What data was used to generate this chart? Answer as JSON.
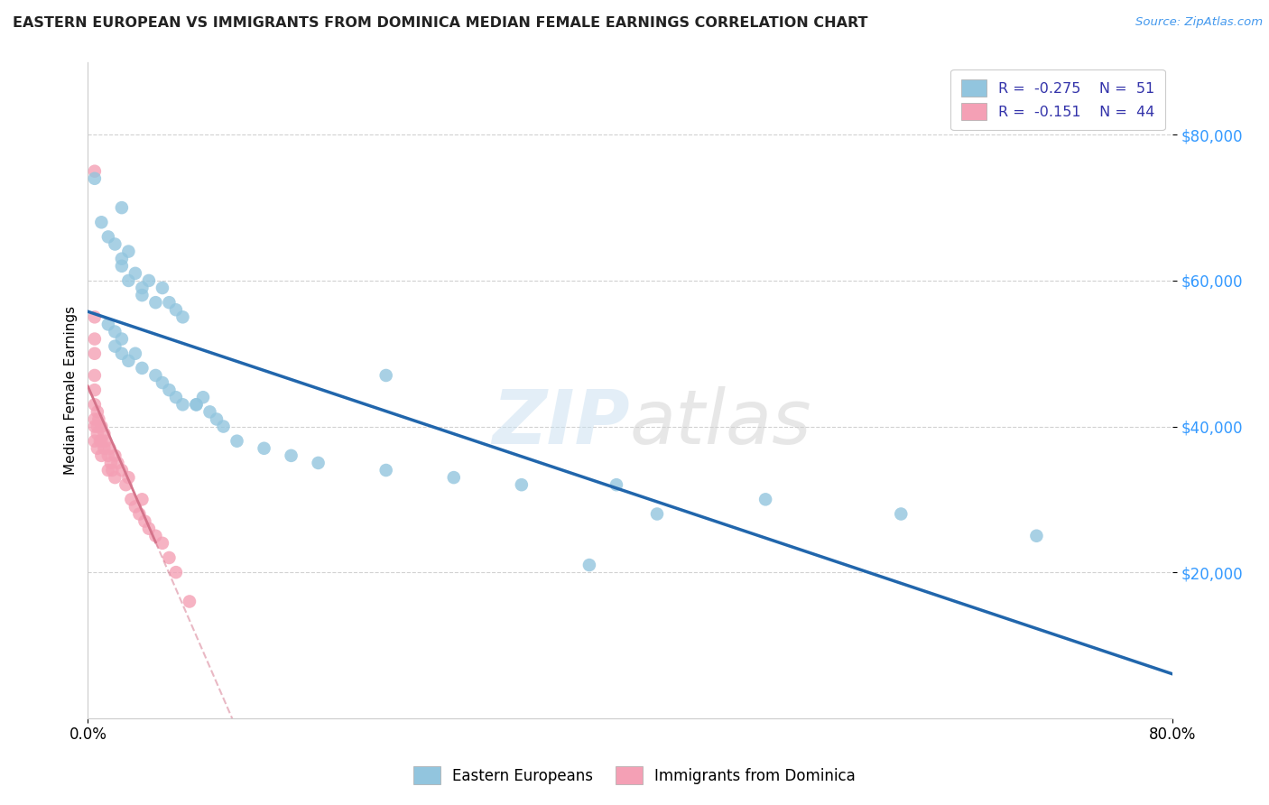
{
  "title": "EASTERN EUROPEAN VS IMMIGRANTS FROM DOMINICA MEDIAN FEMALE EARNINGS CORRELATION CHART",
  "source": "Source: ZipAtlas.com",
  "ylabel": "Median Female Earnings",
  "xlim": [
    0.0,
    0.8
  ],
  "ylim": [
    0,
    90000
  ],
  "yticks": [
    20000,
    40000,
    60000,
    80000
  ],
  "ytick_labels": [
    "$20,000",
    "$40,000",
    "$60,000",
    "$80,000"
  ],
  "xticks": [
    0.0,
    0.8
  ],
  "xtick_labels": [
    "0.0%",
    "80.0%"
  ],
  "legend_label1": "Eastern Europeans",
  "legend_label2": "Immigrants from Dominica",
  "legend_r1": "R =  -0.275",
  "legend_n1": "N =  51",
  "legend_r2": "R =  -0.151",
  "legend_n2": "N =  44",
  "color_blue": "#92c5de",
  "color_pink": "#f4a0b5",
  "color_blue_line": "#2166ac",
  "color_pink_line": "#d4738a",
  "watermark": "ZIPatlas",
  "background_color": "#ffffff",
  "grid_color": "#cccccc",
  "blue_x": [
    0.005,
    0.025,
    0.01,
    0.015,
    0.02,
    0.025,
    0.03,
    0.025,
    0.03,
    0.035,
    0.04,
    0.045,
    0.04,
    0.05,
    0.055,
    0.06,
    0.065,
    0.07,
    0.015,
    0.02,
    0.025,
    0.02,
    0.025,
    0.03,
    0.035,
    0.04,
    0.05,
    0.055,
    0.06,
    0.065,
    0.07,
    0.08,
    0.085,
    0.09,
    0.095,
    0.1,
    0.11,
    0.13,
    0.15,
    0.17,
    0.22,
    0.27,
    0.32,
    0.39,
    0.5,
    0.6,
    0.7,
    0.22,
    0.37,
    0.42,
    0.08
  ],
  "blue_y": [
    74000,
    70000,
    68000,
    66000,
    65000,
    63000,
    64000,
    62000,
    60000,
    61000,
    59000,
    60000,
    58000,
    57000,
    59000,
    57000,
    56000,
    55000,
    54000,
    53000,
    52000,
    51000,
    50000,
    49000,
    50000,
    48000,
    47000,
    46000,
    45000,
    44000,
    43000,
    43000,
    44000,
    42000,
    41000,
    40000,
    38000,
    37000,
    36000,
    35000,
    34000,
    33000,
    32000,
    32000,
    30000,
    28000,
    25000,
    47000,
    21000,
    28000,
    43000
  ],
  "pink_x": [
    0.005,
    0.005,
    0.005,
    0.005,
    0.005,
    0.005,
    0.005,
    0.005,
    0.005,
    0.005,
    0.007,
    0.007,
    0.007,
    0.007,
    0.008,
    0.009,
    0.01,
    0.01,
    0.01,
    0.012,
    0.012,
    0.013,
    0.015,
    0.015,
    0.016,
    0.017,
    0.018,
    0.02,
    0.02,
    0.022,
    0.025,
    0.028,
    0.03,
    0.032,
    0.035,
    0.038,
    0.04,
    0.042,
    0.045,
    0.05,
    0.055,
    0.06,
    0.065,
    0.075
  ],
  "pink_y": [
    75000,
    55000,
    52000,
    50000,
    47000,
    45000,
    43000,
    41000,
    40000,
    38000,
    42000,
    40000,
    39000,
    37000,
    41000,
    38000,
    40000,
    38000,
    36000,
    39000,
    37000,
    38000,
    36000,
    34000,
    37000,
    35000,
    34000,
    36000,
    33000,
    35000,
    34000,
    32000,
    33000,
    30000,
    29000,
    28000,
    30000,
    27000,
    26000,
    25000,
    24000,
    22000,
    20000,
    16000
  ]
}
